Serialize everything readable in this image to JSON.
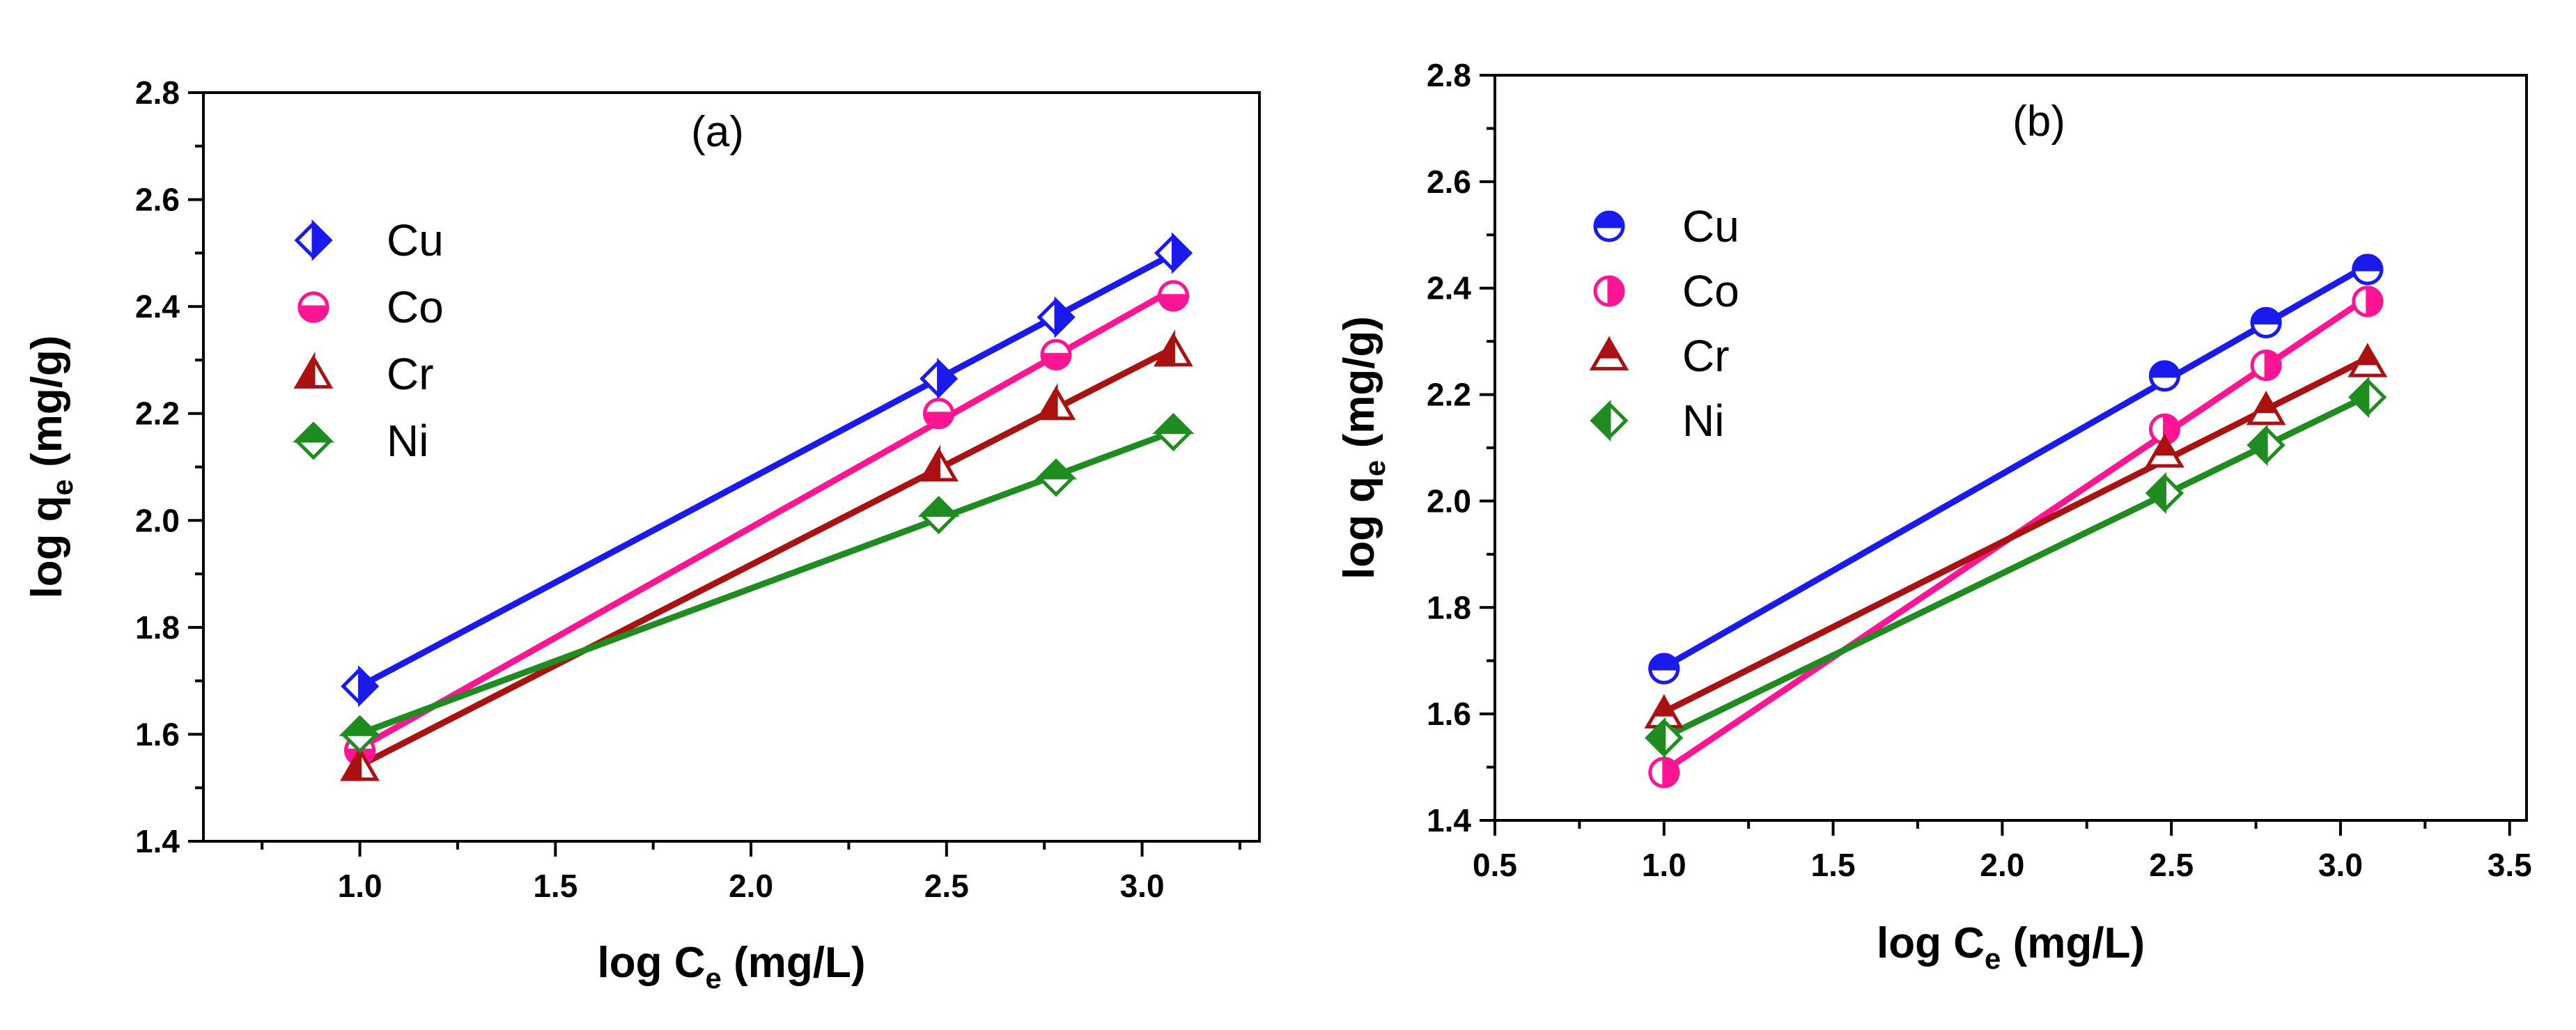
{
  "figure": {
    "chart_data": [
      {
        "type": "line",
        "panel": "a",
        "title": "(a)",
        "xlabel": {
          "main": "log C",
          "sub": "e",
          "rest": " (mg/L)"
        },
        "ylabel": {
          "main": "log q",
          "sub": "e",
          "rest": " (mg/g)"
        },
        "xlim": [
          0.6,
          3.3
        ],
        "ylim": [
          1.4,
          2.8
        ],
        "xticks": [
          1.0,
          1.5,
          2.0,
          2.5,
          3.0
        ],
        "xtick_labels": [
          "1.0",
          "1.5",
          "2.0",
          "2.5",
          "3.0"
        ],
        "yticks": [
          1.4,
          1.6,
          1.8,
          2.0,
          2.2,
          2.4,
          2.6,
          2.8
        ],
        "ytick_labels": [
          "1.4",
          "1.6",
          "1.8",
          "2.0",
          "2.2",
          "2.4",
          "2.6",
          "2.8"
        ],
        "legend_position": "upper-left",
        "x": [
          1.0,
          2.48,
          2.78,
          3.08
        ],
        "series": [
          {
            "name": "Cu",
            "color": "#1a1aee",
            "marker": "diamond-half-right",
            "values": [
              1.69,
              2.265,
              2.38,
              2.5
            ]
          },
          {
            "name": "Co",
            "color": "#ff1493",
            "marker": "circle-half-bottom",
            "values": [
              1.57,
              2.2,
              2.31,
              2.42
            ]
          },
          {
            "name": "Cr",
            "color": "#aa1111",
            "marker": "triangle-half-left",
            "values": [
              1.54,
              2.1,
              2.215,
              2.315
            ]
          },
          {
            "name": "Ni",
            "color": "#1e8c1e",
            "marker": "diamond-half-top",
            "values": [
              1.6,
              2.01,
              2.08,
              2.165
            ]
          }
        ]
      },
      {
        "type": "line",
        "panel": "b",
        "title": "(b)",
        "xlabel": {
          "main": "log C",
          "sub": "e",
          "rest": " (mg/L)"
        },
        "ylabel": {
          "main": "log q",
          "sub": "e",
          "rest": " (mg/g)"
        },
        "xlim": [
          0.5,
          3.55
        ],
        "ylim": [
          1.4,
          2.8
        ],
        "xticks": [
          0.5,
          1.0,
          1.5,
          2.0,
          2.5,
          3.0,
          3.5
        ],
        "xtick_labels": [
          "0.5",
          "1.0",
          "1.5",
          "2.0",
          "2.5",
          "3.0",
          "3.5"
        ],
        "yticks": [
          1.4,
          1.6,
          1.8,
          2.0,
          2.2,
          2.4,
          2.6,
          2.8
        ],
        "ytick_labels": [
          "1.4",
          "1.6",
          "1.8",
          "2.0",
          "2.2",
          "2.4",
          "2.6",
          "2.8"
        ],
        "legend_position": "upper-left",
        "x": [
          1.0,
          2.48,
          2.78,
          3.08
        ],
        "series": [
          {
            "name": "Cu",
            "color": "#1a1aee",
            "marker": "circle-half-top",
            "values": [
              1.685,
              2.235,
              2.335,
              2.435
            ]
          },
          {
            "name": "Co",
            "color": "#ff1493",
            "marker": "circle-half-right",
            "values": [
              1.49,
              2.135,
              2.255,
              2.375
            ]
          },
          {
            "name": "Cr",
            "color": "#aa1111",
            "marker": "triangle-half-top",
            "values": [
              1.6,
              2.09,
              2.17,
              2.26
            ]
          },
          {
            "name": "Ni",
            "color": "#1e8c1e",
            "marker": "diamond-half-left",
            "values": [
              1.555,
              2.015,
              2.105,
              2.195
            ]
          }
        ]
      }
    ]
  }
}
